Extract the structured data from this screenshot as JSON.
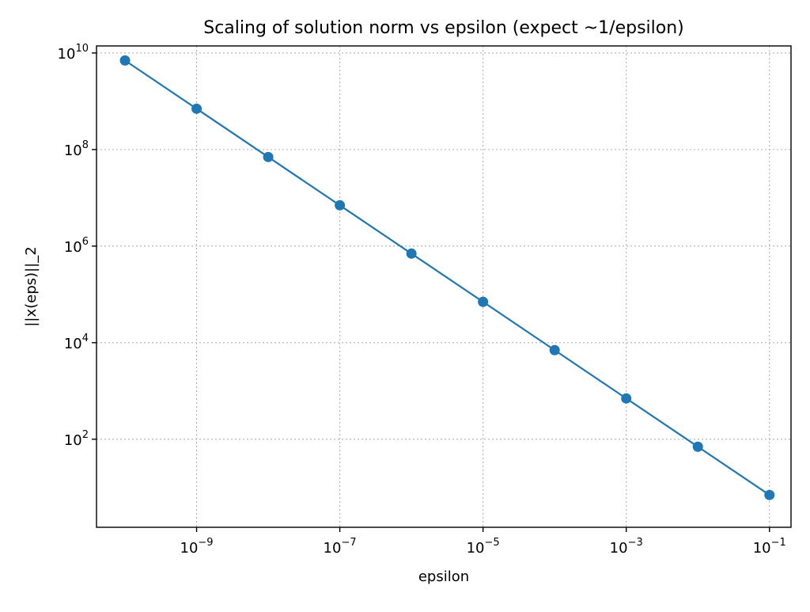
{
  "chart_data": {
    "type": "line",
    "title": "Scaling of solution norm vs epsilon (expect ~1/epsilon)",
    "xlabel": "epsilon",
    "ylabel": "||x(eps)||_2",
    "xscale": "log",
    "yscale": "log",
    "xlim": [
      4e-11,
      0.2
    ],
    "ylim": [
      1.5,
      14000000000.0
    ],
    "grid": true,
    "color": "#1f77b4",
    "x_ticks": [
      {
        "value": 1e-09,
        "base": "10",
        "exp": "−9"
      },
      {
        "value": 1e-07,
        "base": "10",
        "exp": "−7"
      },
      {
        "value": 1e-05,
        "base": "10",
        "exp": "−5"
      },
      {
        "value": 0.001,
        "base": "10",
        "exp": "−3"
      },
      {
        "value": 0.1,
        "base": "10",
        "exp": "−1"
      }
    ],
    "y_ticks": [
      {
        "value": 100.0,
        "base": "10",
        "exp": "2"
      },
      {
        "value": 10000.0,
        "base": "10",
        "exp": "4"
      },
      {
        "value": 1000000.0,
        "base": "10",
        "exp": "6"
      },
      {
        "value": 100000000.0,
        "base": "10",
        "exp": "8"
      },
      {
        "value": 10000000000.0,
        "base": "10",
        "exp": "10"
      }
    ],
    "series": [
      {
        "x": [
          1e-10,
          1e-09,
          1e-08,
          1e-07,
          1e-06,
          1e-05,
          0.0001,
          0.001,
          0.01,
          0.1
        ],
        "y": [
          7000000000.0,
          700000000.0,
          70000000.0,
          7000000.0,
          700000.0,
          70000.0,
          7000.0,
          700.0,
          70,
          7
        ]
      }
    ]
  }
}
